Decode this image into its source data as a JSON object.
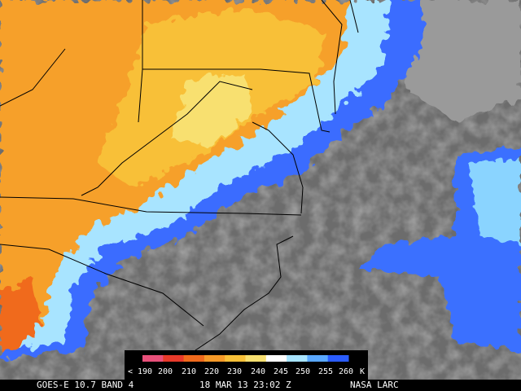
{
  "legend": {
    "labels": [
      "< 190",
      "200",
      "210",
      "220",
      "230",
      "240",
      "245",
      "250",
      "255",
      "260",
      "K"
    ],
    "colors": [
      "#e8507a",
      "#e83a2a",
      "#f06a1c",
      "#f69a28",
      "#f8c038",
      "#f8e070",
      "#ffffff",
      "#a8e4ff",
      "#5aa8ff",
      "#2a5cff"
    ]
  },
  "caption": {
    "satellite": "GOES-E 10.7 BAND 4",
    "time": "18 MAR 13 23:02 Z",
    "source": "NASA LARC"
  }
}
